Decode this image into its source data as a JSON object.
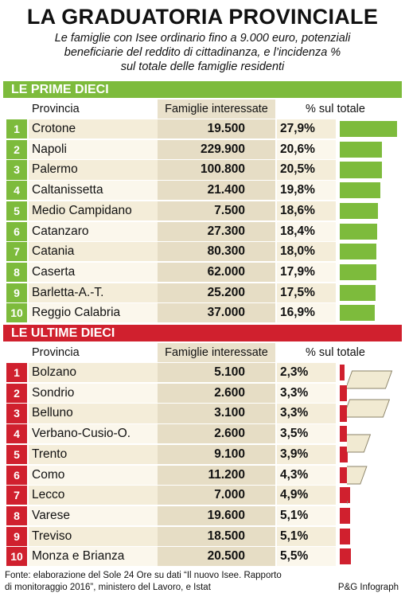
{
  "header": {
    "title": "LA GRADUATORIA PROVINCIALE",
    "subtitle": [
      "Le famiglie con Isee ordinario fino a 9.000 euro, potenziali",
      "beneficiarie del reddito di cittadinanza, e l’incidenza %",
      "sul totale delle famiglie residenti"
    ]
  },
  "sections": [
    {
      "title": "LE PRIME DIECI",
      "color": "#7dbb3c",
      "columns": [
        "Provincia",
        "Famiglie interessate",
        "% sul totale"
      ],
      "rows": [
        {
          "rank": 1,
          "province": "Crotone",
          "families": "19.500",
          "share": {
            "value": 27.9,
            "label": "27,9%"
          }
        },
        {
          "rank": 2,
          "province": "Napoli",
          "families": "229.900",
          "share": {
            "value": 20.6,
            "label": "20,6%"
          }
        },
        {
          "rank": 3,
          "province": "Palermo",
          "families": "100.800",
          "share": {
            "value": 20.5,
            "label": "20,5%"
          }
        },
        {
          "rank": 4,
          "province": "Caltanissetta",
          "families": "21.400",
          "share": {
            "value": 19.8,
            "label": "19,8%"
          }
        },
        {
          "rank": 5,
          "province": "Medio Campidano",
          "families": "7.500",
          "share": {
            "value": 18.6,
            "label": "18,6%"
          }
        },
        {
          "rank": 6,
          "province": "Catanzaro",
          "families": "27.300",
          "share": {
            "value": 18.4,
            "label": "18,4%"
          }
        },
        {
          "rank": 7,
          "province": "Catania",
          "families": "80.300",
          "share": {
            "value": 18.0,
            "label": "18,0%"
          }
        },
        {
          "rank": 8,
          "province": "Caserta",
          "families": "62.000",
          "share": {
            "value": 17.9,
            "label": "17,9%"
          }
        },
        {
          "rank": 9,
          "province": "Barletta-A.-T.",
          "families": "25.200",
          "share": {
            "value": 17.5,
            "label": "17,5%"
          }
        },
        {
          "rank": 10,
          "province": "Reggio Calabria",
          "families": "37.000",
          "share": {
            "value": 16.9,
            "label": "16,9%"
          }
        }
      ]
    },
    {
      "title": "LE ULTIME DIECI",
      "color": "#d0202e",
      "columns": [
        "Provincia",
        "Famiglie interessate",
        "% sul totale"
      ],
      "rows": [
        {
          "rank": 1,
          "province": "Bolzano",
          "families": "5.100",
          "share": {
            "value": 2.3,
            "label": "2,3%"
          }
        },
        {
          "rank": 2,
          "province": "Sondrio",
          "families": "2.600",
          "share": {
            "value": 3.3,
            "label": "3,3%"
          }
        },
        {
          "rank": 3,
          "province": "Belluno",
          "families": "3.100",
          "share": {
            "value": 3.3,
            "label": "3,3%"
          }
        },
        {
          "rank": 4,
          "province": "Verbano-Cusio-O.",
          "families": "2.600",
          "share": {
            "value": 3.5,
            "label": "3,5%"
          }
        },
        {
          "rank": 5,
          "province": "Trento",
          "families": "9.100",
          "share": {
            "value": 3.9,
            "label": "3,9%"
          }
        },
        {
          "rank": 6,
          "province": "Como",
          "families": "11.200",
          "share": {
            "value": 4.3,
            "label": "4,3%"
          }
        },
        {
          "rank": 7,
          "province": "Lecco",
          "families": "7.000",
          "share": {
            "value": 4.9,
            "label": "4,9%"
          }
        },
        {
          "rank": 8,
          "province": "Varese",
          "families": "19.600",
          "share": {
            "value": 5.1,
            "label": "5,1%"
          }
        },
        {
          "rank": 9,
          "province": "Treviso",
          "families": "18.500",
          "share": {
            "value": 5.1,
            "label": "5,1%"
          }
        },
        {
          "rank": 10,
          "province": "Monza e Brianza",
          "families": "20.500",
          "share": {
            "value": 5.5,
            "label": "5,5%"
          }
        }
      ]
    }
  ],
  "footer": {
    "source": [
      "Fonte: elaborazione del Sole 24 Ore su dati “Il nuovo Isee. Rapporto",
      "di monitoraggio 2016”, ministero del Lavoro, e Istat"
    ],
    "credit": "P&G Infograph"
  }
}
